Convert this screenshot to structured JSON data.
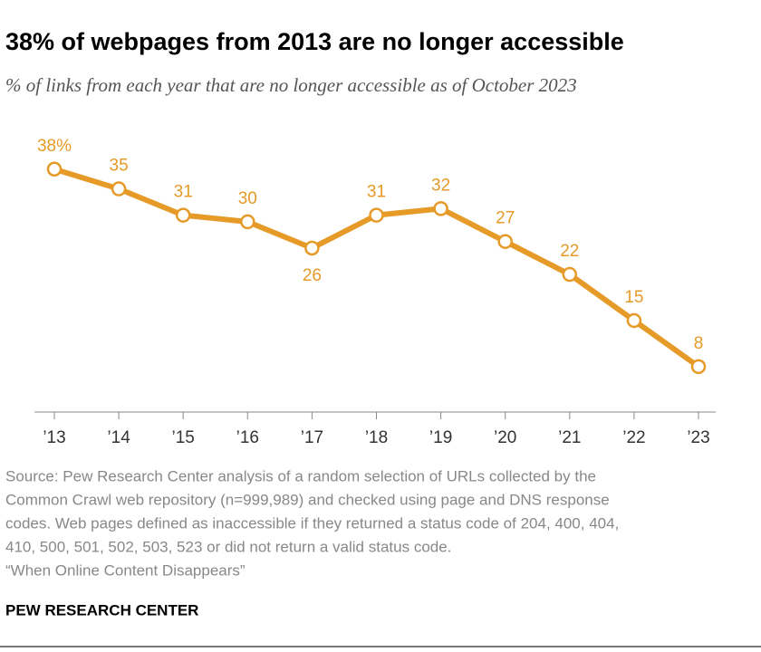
{
  "chart_data": {
    "type": "line",
    "title": "38% of webpages from 2013 are no longer accessible",
    "subtitle": "% of links from each year that are no longer accessible as of October 2023",
    "categories": [
      "’13",
      "’14",
      "’15",
      "’16",
      "’17",
      "’18",
      "’19",
      "’20",
      "’21",
      "’22",
      "’23"
    ],
    "values": [
      38,
      35,
      31,
      30,
      26,
      31,
      32,
      27,
      22,
      15,
      8
    ],
    "value_labels": [
      "38%",
      "35",
      "31",
      "30",
      "26",
      "31",
      "32",
      "27",
      "22",
      "15",
      "8"
    ],
    "color": "#e69a28",
    "source_lines": [
      "Source: Pew Research Center analysis of a random selection of URLs collected by the",
      "Common Crawl web repository (n=999,989) and checked using page and DNS response",
      "codes. Web pages defined as inaccessible if they returned a status code of 204, 400, 404,",
      "410, 500, 501, 502, 503, 523 or did not return a valid status code."
    ],
    "note": "“When Online Content Disappears”",
    "brand": "PEW RESEARCH CENTER"
  }
}
